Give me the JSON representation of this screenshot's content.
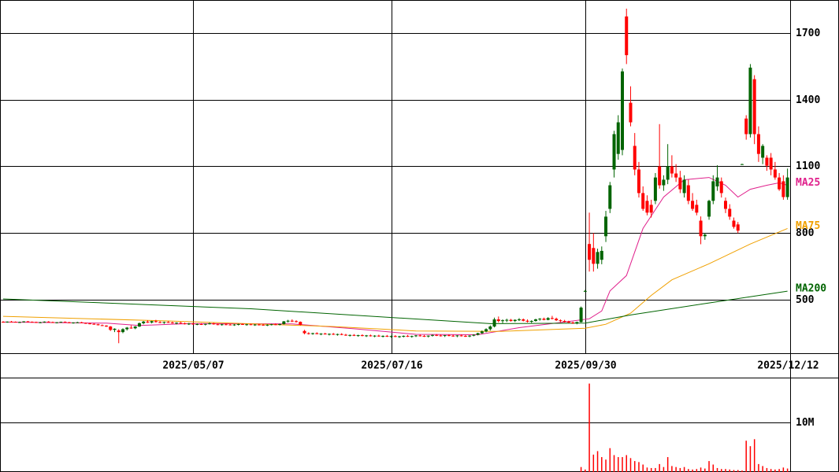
{
  "chart_data": {
    "type": "candlestick",
    "categories": [
      null,
      null,
      null,
      null,
      null,
      null,
      null,
      null,
      null,
      null,
      null,
      null,
      null,
      null,
      null,
      null,
      null,
      null,
      null,
      null,
      null,
      null,
      null,
      null,
      null,
      null,
      null,
      null,
      null,
      null,
      null,
      null,
      null,
      null,
      null,
      null,
      null,
      null,
      null,
      null,
      null,
      null,
      null,
      null,
      null,
      null,
      "2025/05/07",
      null,
      null,
      null,
      null,
      null,
      null,
      null,
      null,
      null,
      null,
      null,
      null,
      null,
      null,
      null,
      null,
      null,
      null,
      null,
      null,
      null,
      null,
      null,
      null,
      null,
      null,
      null,
      null,
      null,
      null,
      null,
      null,
      null,
      null,
      null,
      null,
      null,
      null,
      null,
      null,
      null,
      null,
      null,
      null,
      null,
      null,
      null,
      "2025/07/16",
      null,
      null,
      null,
      null,
      null,
      null,
      null,
      null,
      null,
      null,
      null,
      null,
      null,
      null,
      null,
      null,
      null,
      null,
      null,
      null,
      null,
      null,
      null,
      null,
      null,
      null,
      null,
      null,
      null,
      null,
      null,
      null,
      null,
      null,
      null,
      null,
      null,
      null,
      null,
      null,
      null,
      null,
      null,
      null,
      null,
      null,
      "2025/09/30",
      null,
      null,
      null,
      null,
      null,
      null,
      null,
      null,
      null,
      null,
      null,
      null,
      null,
      null,
      null,
      null,
      null,
      null,
      null,
      null,
      null,
      null,
      null,
      null,
      null,
      null,
      null,
      null,
      null,
      null,
      null,
      null,
      null,
      null,
      null,
      null,
      null,
      null,
      null,
      null,
      null,
      null,
      null,
      null,
      null,
      null,
      null,
      null,
      "2025/12/12"
    ],
    "ohlc": [
      [
        401,
        404,
        398,
        400
      ],
      [
        400,
        403,
        397,
        402
      ],
      [
        402,
        405,
        399,
        401
      ],
      [
        401,
        403,
        398,
        399
      ],
      [
        399,
        402,
        396,
        400
      ],
      [
        400,
        404,
        398,
        403
      ],
      [
        403,
        405,
        400,
        401
      ],
      [
        401,
        403,
        398,
        400
      ],
      [
        400,
        402,
        396,
        398
      ],
      [
        398,
        401,
        395,
        399
      ],
      [
        399,
        403,
        397,
        402
      ],
      [
        402,
        404,
        399,
        400
      ],
      [
        400,
        402,
        396,
        397
      ],
      [
        397,
        400,
        394,
        399
      ],
      [
        399,
        402,
        397,
        401
      ],
      [
        401,
        403,
        398,
        399
      ],
      [
        399,
        401,
        395,
        396
      ],
      [
        396,
        399,
        393,
        398
      ],
      [
        398,
        401,
        396,
        399
      ],
      [
        399,
        401,
        395,
        396
      ],
      [
        396,
        398,
        392,
        394
      ],
      [
        394,
        397,
        390,
        392
      ],
      [
        392,
        395,
        388,
        390
      ],
      [
        390,
        392,
        385,
        386
      ],
      [
        386,
        389,
        382,
        384
      ],
      [
        384,
        386,
        378,
        380
      ],
      [
        380,
        382,
        360,
        365
      ],
      [
        365,
        372,
        355,
        370
      ],
      [
        362,
        368,
        305,
        355
      ],
      [
        355,
        372,
        350,
        368
      ],
      [
        368,
        378,
        362,
        375
      ],
      [
        375,
        385,
        370,
        372
      ],
      [
        372,
        382,
        368,
        380
      ],
      [
        380,
        398,
        378,
        395
      ],
      [
        395,
        405,
        390,
        402
      ],
      [
        402,
        408,
        396,
        398
      ],
      [
        398,
        406,
        394,
        404
      ],
      [
        404,
        410,
        398,
        400
      ],
      [
        400,
        404,
        395,
        397
      ],
      [
        397,
        402,
        392,
        400
      ],
      [
        400,
        404,
        396,
        398
      ],
      [
        398,
        402,
        393,
        395
      ],
      [
        395,
        399,
        390,
        397
      ],
      [
        397,
        401,
        392,
        394
      ],
      [
        394,
        398,
        389,
        392
      ],
      [
        392,
        396,
        387,
        393
      ],
      [
        393,
        396,
        388,
        390
      ],
      [
        390,
        394,
        386,
        391
      ],
      [
        391,
        395,
        387,
        389
      ],
      [
        389,
        393,
        385,
        392
      ],
      [
        392,
        398,
        389,
        394
      ],
      [
        394,
        397,
        388,
        390
      ],
      [
        390,
        393,
        386,
        388
      ],
      [
        388,
        392,
        384,
        390
      ],
      [
        390,
        394,
        386,
        389
      ],
      [
        389,
        392,
        385,
        387
      ],
      [
        387,
        391,
        383,
        389
      ],
      [
        389,
        393,
        385,
        391
      ],
      [
        391,
        394,
        387,
        388
      ],
      [
        388,
        392,
        384,
        390
      ],
      [
        390,
        393,
        386,
        387
      ],
      [
        387,
        391,
        383,
        389
      ],
      [
        389,
        392,
        385,
        388
      ],
      [
        388,
        391,
        384,
        386
      ],
      [
        386,
        390,
        382,
        388
      ],
      [
        388,
        392,
        385,
        390
      ],
      [
        390,
        394,
        386,
        389
      ],
      [
        389,
        393,
        385,
        391
      ],
      [
        391,
        405,
        389,
        403
      ],
      [
        403,
        410,
        398,
        406
      ],
      [
        406,
        412,
        400,
        404
      ],
      [
        404,
        408,
        398,
        401
      ],
      [
        401,
        403,
        385,
        388
      ],
      [
        360,
        365,
        345,
        350
      ],
      [
        350,
        354,
        344,
        347
      ],
      [
        347,
        352,
        343,
        350
      ],
      [
        350,
        354,
        345,
        346
      ],
      [
        346,
        350,
        341,
        348
      ],
      [
        348,
        352,
        344,
        345
      ],
      [
        345,
        349,
        340,
        347
      ],
      [
        347,
        351,
        342,
        344
      ],
      [
        344,
        348,
        339,
        346
      ],
      [
        346,
        350,
        341,
        343
      ],
      [
        343,
        347,
        338,
        340
      ],
      [
        340,
        344,
        335,
        342
      ],
      [
        342,
        346,
        337,
        339
      ],
      [
        339,
        343,
        334,
        341
      ],
      [
        341,
        345,
        336,
        338
      ],
      [
        338,
        342,
        333,
        340
      ],
      [
        340,
        344,
        335,
        337
      ],
      [
        337,
        341,
        332,
        339
      ],
      [
        339,
        343,
        334,
        336
      ],
      [
        336,
        340,
        331,
        338
      ],
      [
        338,
        342,
        333,
        335
      ],
      [
        335,
        339,
        330,
        337
      ],
      [
        337,
        341,
        332,
        334
      ],
      [
        334,
        338,
        329,
        336
      ],
      [
        336,
        340,
        331,
        338
      ],
      [
        338,
        342,
        333,
        335
      ],
      [
        335,
        339,
        330,
        337
      ],
      [
        337,
        342,
        333,
        340
      ],
      [
        340,
        344,
        335,
        338
      ],
      [
        338,
        342,
        333,
        336
      ],
      [
        336,
        340,
        331,
        339
      ],
      [
        339,
        344,
        335,
        342
      ],
      [
        342,
        346,
        337,
        340
      ],
      [
        340,
        344,
        335,
        338
      ],
      [
        338,
        342,
        333,
        341
      ],
      [
        341,
        345,
        336,
        339
      ],
      [
        339,
        343,
        334,
        337
      ],
      [
        337,
        341,
        332,
        340
      ],
      [
        340,
        344,
        335,
        338
      ],
      [
        338,
        342,
        333,
        336
      ],
      [
        336,
        341,
        332,
        339
      ],
      [
        339,
        345,
        336,
        343
      ],
      [
        343,
        352,
        340,
        350
      ],
      [
        350,
        362,
        347,
        358
      ],
      [
        358,
        372,
        354,
        368
      ],
      [
        368,
        385,
        362,
        380
      ],
      [
        380,
        420,
        376,
        412
      ],
      [
        412,
        425,
        398,
        405
      ],
      [
        405,
        412,
        395,
        408
      ],
      [
        408,
        415,
        400,
        410
      ],
      [
        410,
        414,
        402,
        405
      ],
      [
        405,
        412,
        400,
        410
      ],
      [
        410,
        418,
        405,
        412
      ],
      [
        412,
        416,
        403,
        406
      ],
      [
        406,
        412,
        398,
        402
      ],
      [
        402,
        408,
        396,
        405
      ],
      [
        405,
        415,
        402,
        412
      ],
      [
        412,
        418,
        406,
        415
      ],
      [
        415,
        420,
        408,
        410
      ],
      [
        410,
        422,
        408,
        418
      ],
      [
        418,
        428,
        412,
        415
      ],
      [
        415,
        420,
        405,
        408
      ],
      [
        408,
        412,
        400,
        405
      ],
      [
        405,
        410,
        398,
        402
      ],
      [
        402,
        406,
        395,
        398
      ],
      [
        398,
        402,
        392,
        396
      ],
      [
        396,
        402,
        390,
        400
      ],
      [
        400,
        470,
        398,
        465
      ],
      [
        540,
        545,
        535,
        540
      ],
      [
        751,
        892,
        627,
        680
      ],
      [
        733,
        800,
        627,
        662
      ],
      [
        662,
        730,
        640,
        715
      ],
      [
        680,
        740,
        660,
        720
      ],
      [
        786,
        900,
        760,
        874
      ],
      [
        909,
        1030,
        890,
        1015
      ],
      [
        1086,
        1260,
        1050,
        1245
      ],
      [
        1156,
        1330,
        1130,
        1298
      ],
      [
        1174,
        1540,
        1150,
        1527
      ],
      [
        1774,
        1809,
        1560,
        1600
      ],
      [
        1386,
        1460,
        1280,
        1298
      ],
      [
        1192,
        1250,
        1060,
        1086
      ],
      [
        1086,
        1120,
        960,
        980
      ],
      [
        980,
        1010,
        900,
        909
      ],
      [
        945,
        970,
        880,
        892
      ],
      [
        927,
        950,
        870,
        892
      ],
      [
        945,
        1070,
        930,
        1050
      ],
      [
        1100,
        1290,
        1000,
        1015
      ],
      [
        1015,
        1060,
        990,
        1040
      ],
      [
        1040,
        1200,
        1020,
        1100
      ],
      [
        1100,
        1150,
        1050,
        1068
      ],
      [
        1068,
        1110,
        1030,
        1050
      ],
      [
        1050,
        1080,
        980,
        997
      ],
      [
        980,
        1060,
        960,
        1040
      ],
      [
        1015,
        1040,
        930,
        945
      ],
      [
        945,
        980,
        900,
        909
      ],
      [
        927,
        950,
        880,
        892
      ],
      [
        856,
        875,
        750,
        786
      ],
      [
        786,
        800,
        770,
        793
      ],
      [
        874,
        950,
        860,
        945
      ],
      [
        945,
        1060,
        930,
        1033
      ],
      [
        1010,
        1105,
        990,
        1050
      ],
      [
        1033,
        1050,
        960,
        980
      ],
      [
        945,
        960,
        890,
        909
      ],
      [
        909,
        930,
        860,
        874
      ],
      [
        856,
        870,
        820,
        828
      ],
      [
        839,
        850,
        800,
        811
      ],
      [
        1110,
        1112,
        1108,
        1110
      ],
      [
        1315,
        1330,
        1220,
        1245
      ],
      [
        1245,
        1560,
        1230,
        1544
      ],
      [
        1492,
        1510,
        1200,
        1245
      ],
      [
        1245,
        1280,
        1120,
        1156
      ],
      [
        1139,
        1200,
        1110,
        1192
      ],
      [
        1139,
        1150,
        1080,
        1103
      ],
      [
        1139,
        1160,
        1060,
        1086
      ],
      [
        1086,
        1120,
        1040,
        1050
      ],
      [
        1050,
        1070,
        990,
        997
      ],
      [
        1033,
        1060,
        950,
        962
      ],
      [
        962,
        1090,
        950,
        1050
      ]
    ],
    "up_color": "#006400",
    "down_color": "#ff0000",
    "ylim": [
      260,
      1848
    ],
    "yticks": [
      500,
      800,
      1100,
      1400,
      1700
    ],
    "grid": true,
    "series": [
      {
        "name": "MA25",
        "color": "#e0208c",
        "x": [
          0,
          25,
          33,
          45,
          70,
          85,
          100,
          115,
          125,
          138,
          142,
          145,
          147,
          151,
          155,
          160,
          165,
          171,
          175,
          178,
          181,
          185,
          188,
          190
        ],
        "values": [
          400,
          395,
          385,
          393,
          392,
          370,
          345,
          343,
          375,
          405,
          415,
          450,
          540,
          609,
          821,
          962,
          1040,
          1050,
          1015,
          962,
          997,
          1015,
          1026,
          1015
        ]
      },
      {
        "name": "MA75",
        "color": "#f0a000",
        "x": [
          0,
          40,
          80,
          100,
          120,
          141,
          146,
          152,
          157,
          162,
          171,
          181,
          190
        ],
        "values": [
          426,
          405,
          380,
          360,
          358,
          372,
          390,
          440,
          520,
          590,
          662,
          751,
          821
        ]
      },
      {
        "name": "MA200",
        "color": "#006400",
        "x": [
          0,
          60,
          118,
          141,
          152,
          171,
          190
        ],
        "values": [
          504,
          460,
          393,
          395,
          432,
          486,
          539
        ]
      }
    ],
    "volume": {
      "color": "#ff0000",
      "ylim": [
        0,
        19000000
      ],
      "yticks": [
        {
          "value": 10000000,
          "label": "10M"
        }
      ],
      "x": [
        140,
        141,
        142,
        143,
        144,
        145,
        146,
        147,
        148,
        149,
        150,
        151,
        152,
        153,
        154,
        155,
        156,
        157,
        158,
        159,
        160,
        161,
        162,
        163,
        164,
        165,
        166,
        167,
        168,
        169,
        170,
        171,
        172,
        173,
        174,
        175,
        176,
        177,
        178,
        179,
        180,
        181,
        182,
        183,
        184,
        185,
        186,
        187,
        188,
        189,
        190
      ],
      "values": [
        1000000,
        500000,
        17800000,
        3500000,
        4200000,
        3000000,
        2500000,
        4800000,
        3400000,
        3000000,
        3000000,
        3400000,
        2800000,
        2200000,
        2000000,
        1500000,
        900000,
        800000,
        800000,
        1600000,
        1000000,
        3000000,
        1200000,
        1000000,
        800000,
        1000000,
        600000,
        500000,
        600000,
        900000,
        700000,
        2200000,
        1500000,
        800000,
        600000,
        600000,
        500000,
        400000,
        400000,
        300000,
        6300000,
        5200000,
        6600000,
        1600000,
        1200000,
        800000,
        600000,
        500000,
        600000,
        900000,
        700000
      ]
    }
  }
}
